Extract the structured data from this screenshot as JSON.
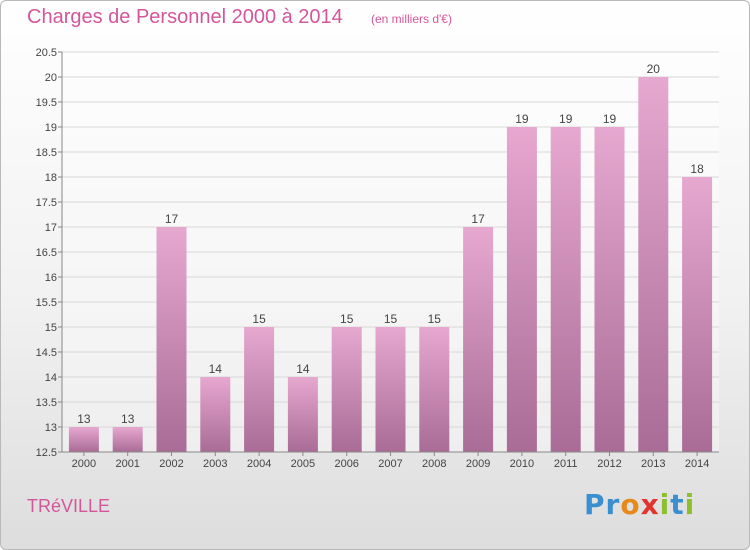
{
  "header": {
    "title": "Charges de Personnel 2000 à 2014",
    "subtitle": "(en milliers d'€)"
  },
  "footer": {
    "commune": "TRéVILLE",
    "logo_letters": [
      {
        "ch": "P",
        "color": "#3a8fd0"
      },
      {
        "ch": "r",
        "color": "#3a8fd0"
      },
      {
        "ch": "o",
        "color": "#e8891b"
      },
      {
        "ch": "x",
        "color": "#e0342c"
      },
      {
        "ch": "i",
        "color": "#8cbf2a"
      },
      {
        "ch": "t",
        "color": "#3a8fd0"
      },
      {
        "ch": "i",
        "color": "#8cbf2a"
      }
    ]
  },
  "colors": {
    "bar_top": "#e6a8cf",
    "bar_bottom": "#a96c96",
    "grid": "#d8d8d8",
    "axis_text": "#444444"
  },
  "chart_data": {
    "type": "bar",
    "categories": [
      "2000",
      "2001",
      "2002",
      "2003",
      "2004",
      "2005",
      "2006",
      "2007",
      "2008",
      "2009",
      "2010",
      "2011",
      "2012",
      "2013",
      "2014"
    ],
    "values": [
      13,
      13,
      17,
      14,
      15,
      14,
      15,
      15,
      15,
      17,
      19,
      19,
      19,
      20,
      18
    ],
    "ylim": [
      12.5,
      20.5
    ],
    "yticks": [
      12.5,
      13,
      13.5,
      14,
      14.5,
      15,
      15.5,
      16,
      16.5,
      17,
      17.5,
      18,
      18.5,
      19,
      19.5,
      20,
      20.5
    ],
    "title": "Charges de Personnel 2000 à 2014",
    "ylabel": "(en milliers d'€)",
    "grid": true
  }
}
